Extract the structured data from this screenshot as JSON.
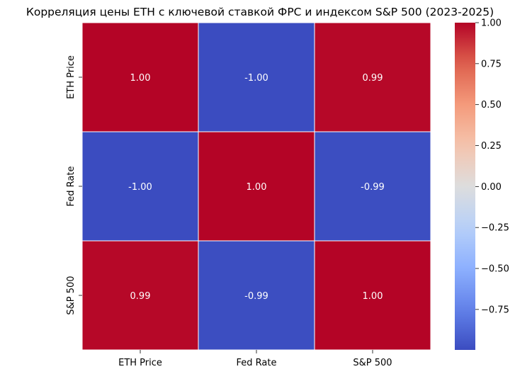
{
  "chart_data": {
    "type": "heatmap",
    "title": "Корреляция цены ETH с ключевой ставкой ФРС и индексом S&P 500 (2023-2025)",
    "xlabel": "",
    "ylabel": "",
    "x_categories": [
      "ETH Price",
      "Fed Rate",
      "S&P 500"
    ],
    "y_categories": [
      "ETH Price",
      "Fed Rate",
      "S&P 500"
    ],
    "values": [
      [
        1.0,
        -1.0,
        0.99
      ],
      [
        -1.0,
        1.0,
        -0.99
      ],
      [
        0.99,
        -0.99,
        1.0
      ]
    ],
    "cell_labels": [
      [
        "1.00",
        "-1.00",
        "0.99"
      ],
      [
        "-1.00",
        "1.00",
        "-0.99"
      ],
      [
        "0.99",
        "-0.99",
        "1.00"
      ]
    ],
    "colormap": "coolwarm",
    "colorbar": {
      "vmin": -0.997,
      "vmax": 1.0,
      "ticks": [
        1.0,
        0.75,
        0.5,
        0.25,
        0.0,
        -0.25,
        -0.5,
        -0.75
      ],
      "tick_labels": [
        "1.00",
        "0.75",
        "0.50",
        "0.25",
        "0.00",
        "−0.25",
        "−0.50",
        "−0.75"
      ]
    },
    "colors": {
      "high": "#b40426",
      "mid": "#dddddd",
      "low": "#3b4cc0"
    }
  }
}
